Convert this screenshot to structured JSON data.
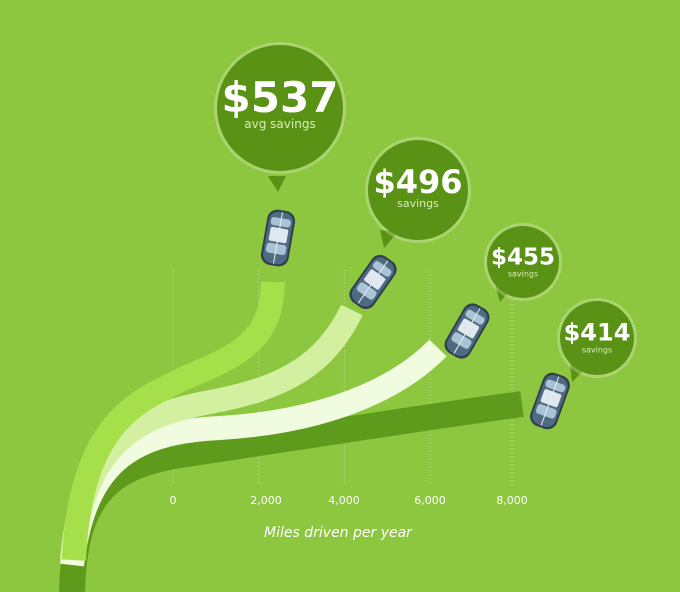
{
  "chart_data": {
    "type": "line",
    "title": "",
    "xlabel": "Miles driven per year",
    "x_ticks": [
      "0",
      "2,000",
      "4,000",
      "6,000",
      "8,000"
    ],
    "x_tick_values": [
      0,
      2000,
      4000,
      6000,
      8000
    ],
    "series": [
      {
        "miles": 2000,
        "amount": "$537",
        "sublabel": "avg savings",
        "value": 537,
        "color": "#a5e04a"
      },
      {
        "miles": 4000,
        "amount": "$496",
        "sublabel": "savings",
        "value": 496,
        "color": "#d2f0a0"
      },
      {
        "miles": 6000,
        "amount": "$455",
        "sublabel": "savings",
        "value": 455,
        "color": "#f1fbe0"
      },
      {
        "miles": 8000,
        "amount": "$414",
        "sublabel": "savings",
        "value": 414,
        "color": "#5e9a1c"
      }
    ],
    "colors": {
      "background": "#8dc63f",
      "bubble": "#5a9216",
      "guide": "#c8e89a",
      "car_body": "#4f6b82",
      "car_glass": "#a9c4d6"
    }
  }
}
